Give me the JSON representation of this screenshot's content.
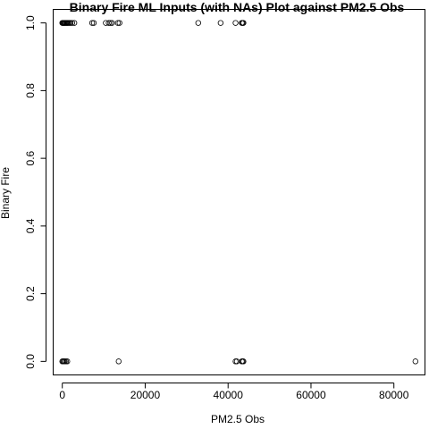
{
  "chart_data": {
    "type": "scatter",
    "title": "Binary Fire ML Inputs (with NAs) Plot against PM2.5 Obs",
    "xlabel": "PM2.5 Obs",
    "ylabel": "Binary Fire",
    "xlim": [
      -2200,
      87500
    ],
    "ylim": [
      -0.04,
      1.04
    ],
    "xticks": [
      0,
      20000,
      40000,
      60000,
      80000
    ],
    "xtick_labels": [
      "0",
      "20000",
      "40000",
      "60000",
      "80000"
    ],
    "yticks": [
      0.0,
      0.2,
      0.4,
      0.6,
      0.8,
      1.0
    ],
    "ytick_labels": [
      "0.0",
      "0.2",
      "0.4",
      "0.6",
      "0.8",
      "1.0"
    ],
    "grid": false,
    "legend": "none",
    "series": [
      {
        "marker": "open-circle",
        "color": "#000000",
        "points": [
          {
            "x": 0,
            "y": 1
          },
          {
            "x": 150,
            "y": 1
          },
          {
            "x": 300,
            "y": 1
          },
          {
            "x": 450,
            "y": 1
          },
          {
            "x": 600,
            "y": 1
          },
          {
            "x": 800,
            "y": 1
          },
          {
            "x": 1000,
            "y": 1
          },
          {
            "x": 1200,
            "y": 1
          },
          {
            "x": 1400,
            "y": 1
          },
          {
            "x": 1700,
            "y": 1
          },
          {
            "x": 2000,
            "y": 1
          },
          {
            "x": 2400,
            "y": 1
          },
          {
            "x": 2900,
            "y": 1
          },
          {
            "x": 7200,
            "y": 1
          },
          {
            "x": 7600,
            "y": 1
          },
          {
            "x": 10500,
            "y": 1
          },
          {
            "x": 11200,
            "y": 1
          },
          {
            "x": 11600,
            "y": 1
          },
          {
            "x": 12000,
            "y": 1
          },
          {
            "x": 13400,
            "y": 1
          },
          {
            "x": 13800,
            "y": 1
          },
          {
            "x": 32800,
            "y": 1
          },
          {
            "x": 38200,
            "y": 1
          },
          {
            "x": 41800,
            "y": 1
          },
          {
            "x": 43300,
            "y": 1
          },
          {
            "x": 43500,
            "y": 1
          },
          {
            "x": 43700,
            "y": 1
          },
          {
            "x": 0,
            "y": 0
          },
          {
            "x": 200,
            "y": 0
          },
          {
            "x": 400,
            "y": 0
          },
          {
            "x": 600,
            "y": 0
          },
          {
            "x": 900,
            "y": 0
          },
          {
            "x": 1200,
            "y": 0
          },
          {
            "x": 13600,
            "y": 0
          },
          {
            "x": 41800,
            "y": 0
          },
          {
            "x": 42100,
            "y": 0
          },
          {
            "x": 43300,
            "y": 0
          },
          {
            "x": 43500,
            "y": 0
          },
          {
            "x": 43700,
            "y": 0
          },
          {
            "x": 85200,
            "y": 0
          }
        ]
      }
    ]
  }
}
